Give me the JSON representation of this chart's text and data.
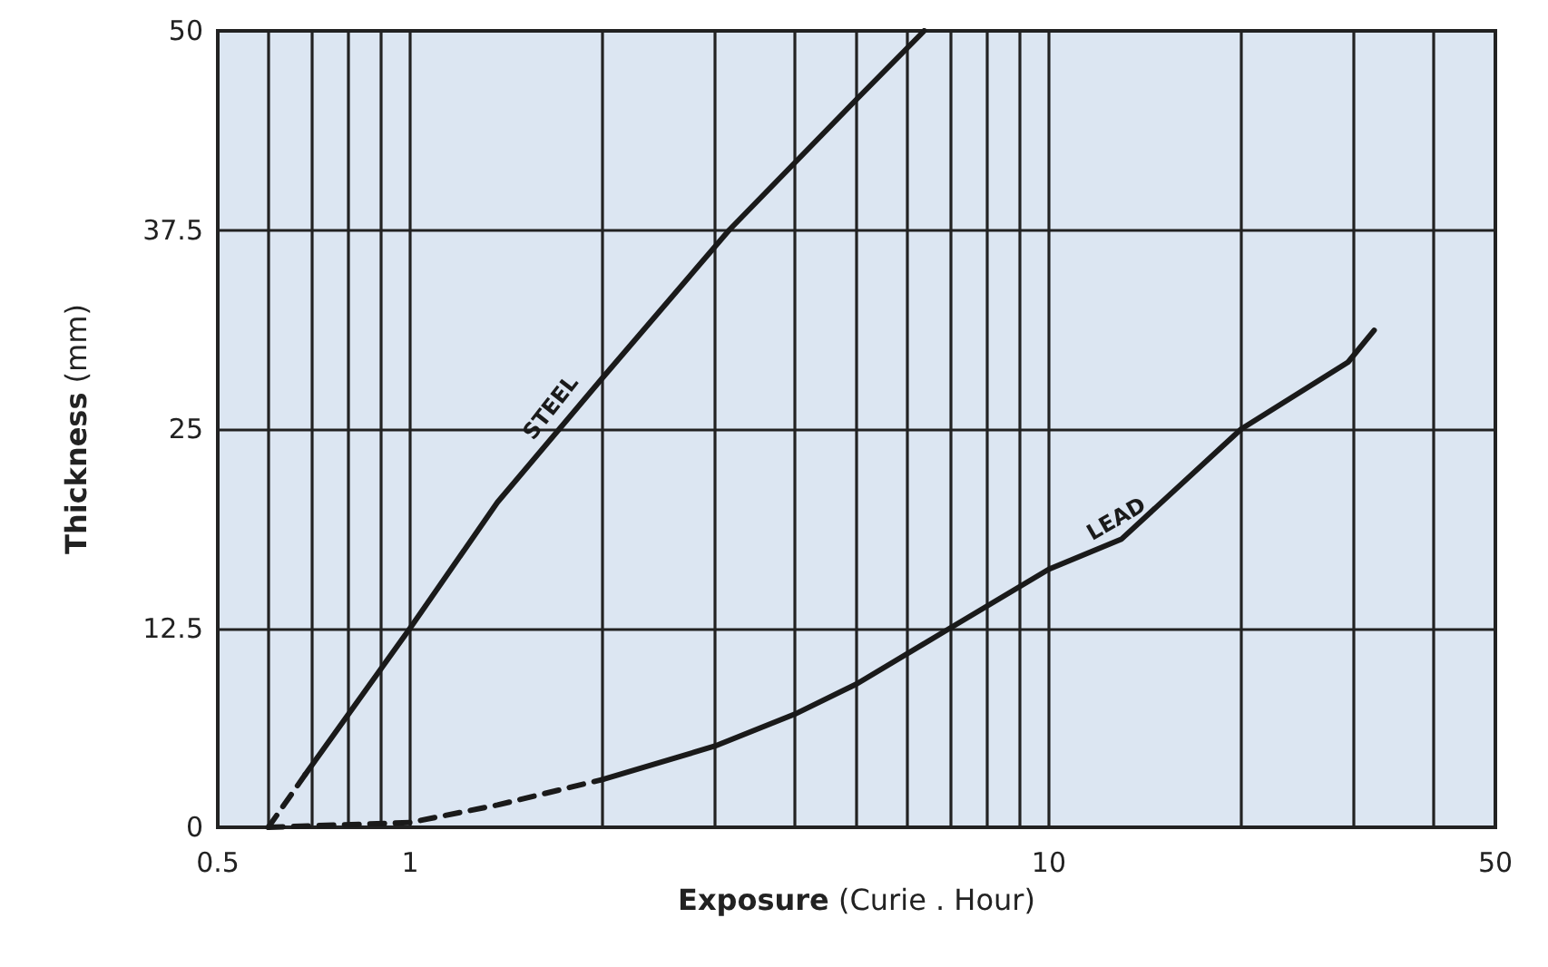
{
  "chart_data": {
    "type": "line",
    "xlabel": "Exposure (Curie . Hour)",
    "ylabel": "Thickness (mm)",
    "log": "x",
    "grid": true,
    "legend": false,
    "marker": "none",
    "xlim": [
      0.5,
      50
    ],
    "ylim": [
      0,
      50
    ],
    "xticks": [
      0.5,
      {
        "value": 0.6,
        "label": null
      },
      {
        "value": 0.7,
        "label": null
      },
      {
        "value": 0.8,
        "label": null
      },
      {
        "value": 0.9,
        "label": null
      },
      1,
      {
        "value": 2,
        "label": null
      },
      {
        "value": 3,
        "label": null
      },
      {
        "value": 4,
        "label": null
      },
      {
        "value": 5,
        "label": null
      },
      {
        "value": 6,
        "label": null
      },
      {
        "value": 7,
        "label": null
      },
      {
        "value": 8,
        "label": null
      },
      {
        "value": 9,
        "label": null
      },
      10,
      {
        "value": 20,
        "label": null
      },
      {
        "value": 30,
        "label": null
      },
      {
        "value": 40,
        "label": null
      },
      50
    ],
    "yticks": [
      0,
      12.5,
      25,
      37.5,
      50
    ],
    "series": [
      {
        "color": "#1a1a1a",
        "line_style": "dashed",
        "x": [
          0.6,
          0.685
        ],
        "values": [
          0,
          3.3
        ]
      },
      {
        "name": "STEEL",
        "color": "#1a1a1a",
        "line_style": "solid",
        "x": [
          0.685,
          1,
          1.37,
          2,
          3.16,
          5,
          6.38
        ],
        "values": [
          3.3,
          12.5,
          20.4,
          28.2,
          37.5,
          45.7,
          50
        ]
      },
      {
        "color": "#1a1a1a",
        "line_style": "dashed",
        "x": [
          0.6,
          1,
          1.37,
          2
        ],
        "values": [
          0,
          0.3,
          1.4,
          3
        ]
      },
      {
        "name": "LEAD",
        "color": "#1a1a1a",
        "line_style": "solid",
        "x": [
          2,
          3,
          4,
          5,
          7,
          10,
          13,
          20,
          29.4,
          32.3
        ],
        "values": [
          3,
          5.1,
          7.1,
          9,
          12.5,
          16.2,
          18.1,
          25,
          29.2,
          31.2
        ]
      }
    ]
  }
}
